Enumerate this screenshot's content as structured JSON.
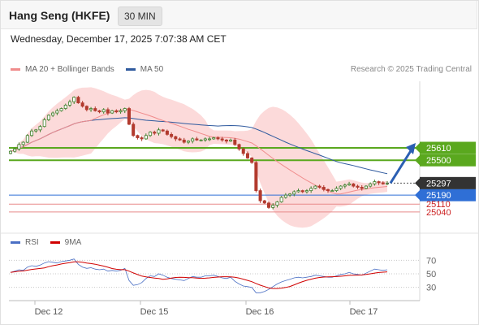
{
  "header": {
    "title": "Hang Seng (HKFE)",
    "timeframe": "30 MIN"
  },
  "datetime": "Wednesday, December 17, 2025 7:07:38 AM CET",
  "credit": "Research © 2025 Trading Central",
  "legend": {
    "ma20_bb": "MA 20 + Bollinger Bands",
    "ma50": "MA 50",
    "rsi": "RSI",
    "rsi_ma": "9MA"
  },
  "colors": {
    "ma20": "#f08c8c",
    "ma50": "#2f5a9e",
    "bollinger_fill": "#fbd3d3",
    "candle_up": "#3f7f2b",
    "candle_down": "#b23a2e",
    "resistance_green": "#5aa81e",
    "pivot_blue": "#2f6fd6",
    "support_red": "#e88a8a",
    "rsi_line": "#4a6fc4",
    "rsi_ma_line": "#d00000",
    "current_price_bg": "#333333"
  },
  "chart_data": [
    {
      "type": "candlestick",
      "title": "Hang Seng (HKFE)",
      "timeframe": "30 MIN",
      "x_labels": [
        "Dec 12",
        "Dec 15",
        "Dec 16",
        "Dec 17"
      ],
      "ylim": [
        24960,
        26130
      ],
      "current_price": 25297,
      "key_levels": [
        {
          "value": 25610,
          "label": "25610",
          "type": "resistance"
        },
        {
          "value": 25500,
          "label": "25500",
          "type": "resistance"
        },
        {
          "value": 25190,
          "label": "25190",
          "type": "pivot"
        },
        {
          "value": 25110,
          "label": "25110",
          "type": "support"
        },
        {
          "value": 25040,
          "label": "25040",
          "type": "support"
        }
      ],
      "close_series": [
        25580,
        25600,
        25640,
        25660,
        25720,
        25760,
        25770,
        25800,
        25860,
        25900,
        25920,
        25940,
        25960,
        25990,
        26020,
        26060,
        26010,
        25980,
        25950,
        25960,
        25940,
        25930,
        25950,
        25920,
        25940,
        25930,
        25940,
        25960,
        25820,
        25720,
        25700,
        25690,
        25720,
        25750,
        25740,
        25770,
        25760,
        25730,
        25710,
        25690,
        25680,
        25660,
        25670,
        25690,
        25680,
        25680,
        25690,
        25690,
        25700,
        25690,
        25680,
        25670,
        25680,
        25640,
        25600,
        25560,
        25520,
        25480,
        25230,
        25140,
        25120,
        25080,
        25100,
        25130,
        25170,
        25190,
        25200,
        25220,
        25230,
        25220,
        25230,
        25250,
        25270,
        25260,
        25240,
        25230,
        25230,
        25250,
        25270,
        25280,
        25290,
        25270,
        25260,
        25250,
        25270,
        25290,
        25310,
        25300,
        25290,
        25297
      ],
      "projection": {
        "from": 25297,
        "to": 25610
      },
      "series": [
        {
          "name": "MA 20 + Bollinger Bands"
        },
        {
          "name": "MA 50"
        }
      ]
    },
    {
      "type": "line",
      "title": "RSI",
      "ylim": [
        20,
        80
      ],
      "y_ticks": [
        70,
        50,
        30
      ],
      "series": [
        {
          "name": "RSI",
          "values": [
            52,
            54,
            56,
            55,
            60,
            62,
            61,
            63,
            66,
            68,
            67,
            66,
            68,
            69,
            70,
            72,
            64,
            60,
            58,
            59,
            57,
            56,
            57,
            54,
            55,
            54,
            55,
            58,
            40,
            33,
            34,
            37,
            43,
            47,
            46,
            50,
            48,
            45,
            43,
            42,
            41,
            40,
            43,
            46,
            45,
            45,
            47,
            47,
            48,
            46,
            44,
            43,
            45,
            39,
            35,
            32,
            31,
            30,
            22,
            22,
            24,
            27,
            31,
            35,
            38,
            40,
            42,
            44,
            45,
            44,
            45,
            46,
            48,
            47,
            46,
            45,
            45,
            47,
            49,
            50,
            52,
            50,
            49,
            48,
            51,
            54,
            57,
            56,
            55,
            56
          ]
        },
        {
          "name": "9MA"
        }
      ]
    }
  ]
}
